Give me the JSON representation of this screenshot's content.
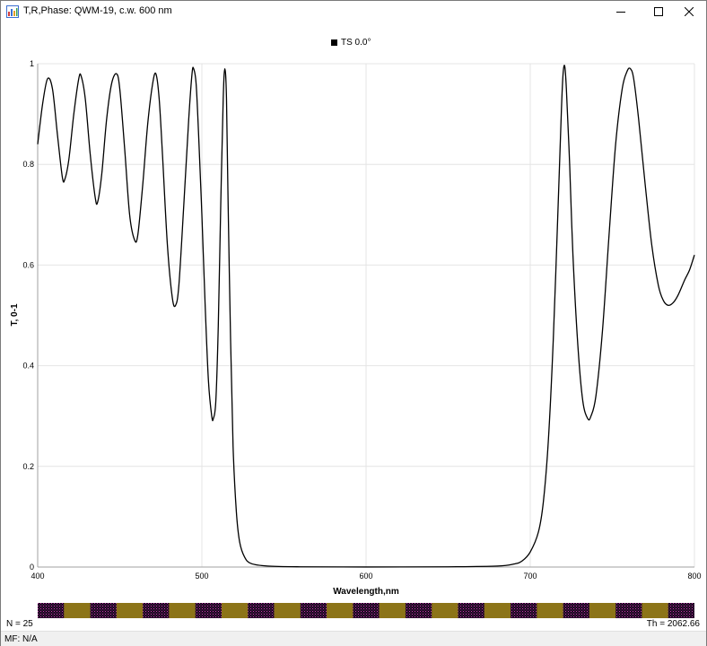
{
  "window": {
    "title": "T,R,Phase: QWM-19, c.w. 600 nm",
    "icon": "app-chart-icon",
    "controls": [
      "minimize-icon",
      "maximize-icon",
      "close-icon"
    ]
  },
  "chart_data": {
    "type": "line",
    "title": "",
    "xlabel": "Wavelength,nm",
    "ylabel": "T, 0-1",
    "xlim": [
      400,
      800
    ],
    "ylim": [
      0,
      1
    ],
    "x_ticks": [
      "400",
      "500",
      "600",
      "700",
      "800"
    ],
    "y_ticks": [
      "0",
      "0.2",
      "0.4",
      "0.6",
      "0.8",
      "1"
    ],
    "grid": true,
    "legend": "top-center",
    "series": [
      {
        "name": "TS 0.0°",
        "color": "#000000",
        "points": [
          [
            400,
            0.84
          ],
          [
            403,
            0.92
          ],
          [
            406,
            0.97
          ],
          [
            409,
            0.95
          ],
          [
            412,
            0.86
          ],
          [
            415,
            0.775
          ],
          [
            416.5,
            0.77
          ],
          [
            419,
            0.81
          ],
          [
            422,
            0.9
          ],
          [
            425,
            0.97
          ],
          [
            426.5,
            0.975
          ],
          [
            429,
            0.93
          ],
          [
            432,
            0.82
          ],
          [
            435,
            0.735
          ],
          [
            436.5,
            0.725
          ],
          [
            439,
            0.78
          ],
          [
            442,
            0.89
          ],
          [
            445,
            0.96
          ],
          [
            448,
            0.98
          ],
          [
            450,
            0.95
          ],
          [
            453,
            0.83
          ],
          [
            456,
            0.7
          ],
          [
            459,
            0.65
          ],
          [
            461,
            0.66
          ],
          [
            464,
            0.76
          ],
          [
            467,
            0.88
          ],
          [
            470,
            0.96
          ],
          [
            472,
            0.98
          ],
          [
            474,
            0.93
          ],
          [
            476,
            0.82
          ],
          [
            479,
            0.64
          ],
          [
            482,
            0.535
          ],
          [
            484,
            0.52
          ],
          [
            486,
            0.56
          ],
          [
            489,
            0.72
          ],
          [
            492,
            0.89
          ],
          [
            494,
            0.98
          ],
          [
            495,
            0.99
          ],
          [
            496.5,
            0.96
          ],
          [
            498,
            0.86
          ],
          [
            500,
            0.7
          ],
          [
            502,
            0.52
          ],
          [
            504,
            0.37
          ],
          [
            506,
            0.3
          ],
          [
            507,
            0.295
          ],
          [
            508.5,
            0.33
          ],
          [
            510,
            0.48
          ],
          [
            511.5,
            0.72
          ],
          [
            513,
            0.93
          ],
          [
            514,
            0.99
          ],
          [
            515,
            0.93
          ],
          [
            516,
            0.72
          ],
          [
            517.5,
            0.45
          ],
          [
            519,
            0.24
          ],
          [
            521,
            0.11
          ],
          [
            523,
            0.05
          ],
          [
            526,
            0.02
          ],
          [
            530,
            0.007
          ],
          [
            540,
            0.002
          ],
          [
            560,
            0.0005
          ],
          [
            600,
            0.0001
          ],
          [
            650,
            0.0005
          ],
          [
            680,
            0.002
          ],
          [
            690,
            0.006
          ],
          [
            695,
            0.012
          ],
          [
            700,
            0.03
          ],
          [
            705,
            0.07
          ],
          [
            708,
            0.13
          ],
          [
            711,
            0.25
          ],
          [
            714,
            0.45
          ],
          [
            717,
            0.72
          ],
          [
            719,
            0.91
          ],
          [
            720,
            0.98
          ],
          [
            721,
            0.995
          ],
          [
            722,
            0.95
          ],
          [
            724,
            0.8
          ],
          [
            726,
            0.62
          ],
          [
            729,
            0.44
          ],
          [
            732,
            0.33
          ],
          [
            735,
            0.295
          ],
          [
            737,
            0.3
          ],
          [
            740,
            0.34
          ],
          [
            744,
            0.47
          ],
          [
            748,
            0.66
          ],
          [
            752,
            0.84
          ],
          [
            756,
            0.95
          ],
          [
            759,
            0.985
          ],
          [
            761,
            0.99
          ],
          [
            763,
            0.97
          ],
          [
            766,
            0.89
          ],
          [
            770,
            0.76
          ],
          [
            774,
            0.64
          ],
          [
            778,
            0.56
          ],
          [
            781,
            0.53
          ],
          [
            784,
            0.52
          ],
          [
            787,
            0.525
          ],
          [
            790,
            0.54
          ],
          [
            794,
            0.57
          ],
          [
            797,
            0.59
          ],
          [
            800,
            0.62
          ]
        ]
      }
    ]
  },
  "layer_bar": {
    "count": 25,
    "colors": [
      "#2a0f2f",
      "#8c7418"
    ]
  },
  "status": {
    "n_label": "N = 25",
    "th_label": "Th = 2062.66",
    "mf_label": "MF: N/A"
  }
}
